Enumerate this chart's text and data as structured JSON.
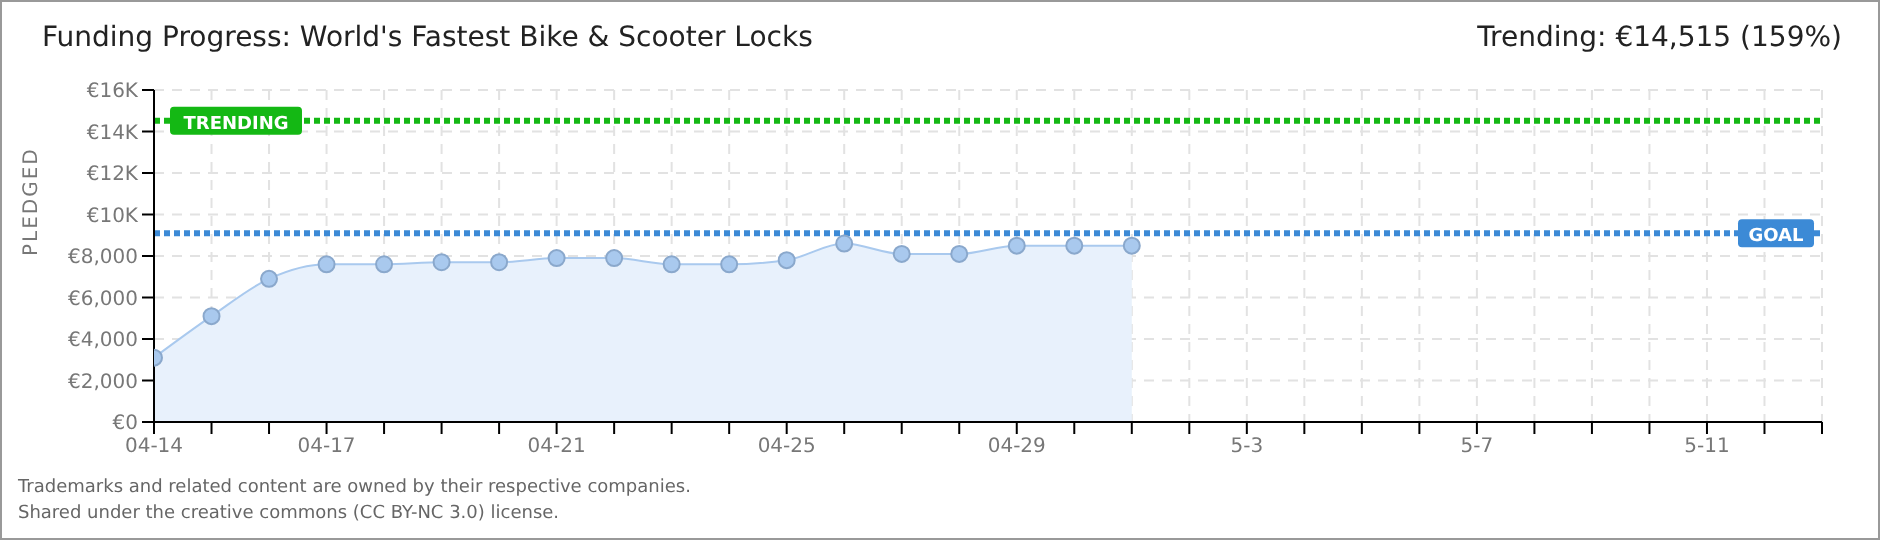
{
  "chart_data": {
    "type": "area",
    "title": "Funding Progress: World's Fastest Bike & Scooter Locks",
    "subtitle": "Trending: €14,515 (159%)",
    "ylabel": "PLEDGED",
    "categories": [
      "04-14",
      null,
      null,
      "04-17",
      null,
      null,
      null,
      "04-21",
      null,
      null,
      null,
      "04-25",
      null,
      null,
      null,
      "04-29",
      null,
      null,
      null,
      "5-3",
      null,
      null,
      null,
      "5-7",
      null,
      null,
      null,
      "5-11",
      null,
      null
    ],
    "series": [
      {
        "color": "#a9c9ee",
        "values": [
          3100,
          5100,
          6900,
          7600,
          7600,
          7700,
          7700,
          7900,
          7900,
          7600,
          7600,
          7800,
          8600,
          8100,
          8100,
          8500,
          8500,
          8500,
          null,
          null,
          null,
          null,
          null,
          null,
          null,
          null,
          null,
          null,
          null,
          null
        ]
      }
    ],
    "ylim": [
      0,
      16000
    ],
    "yticks": [
      {
        "value": 0,
        "label": "€0"
      },
      {
        "value": 2000,
        "label": "€2,000"
      },
      {
        "value": 4000,
        "label": "€4,000"
      },
      {
        "value": 6000,
        "label": "€6,000"
      },
      {
        "value": 8000,
        "label": "€8,000"
      },
      {
        "value": 10000,
        "label": "€10K"
      },
      {
        "value": 12000,
        "label": "€12K"
      },
      {
        "value": 14000,
        "label": "€14K"
      },
      {
        "value": 16000,
        "label": "€16K"
      }
    ],
    "ref_lines": [
      {
        "axis": "y",
        "value": 14515,
        "label": "TRENDING",
        "color": "#14b814",
        "line_style": "dotted"
      },
      {
        "axis": "y",
        "value": 9100,
        "label": "GOAL",
        "color": "#3c8ad6",
        "line_style": "dotted"
      }
    ],
    "annotations": [
      "Trademarks and related content are owned by their respective companies.",
      "Shared under the creative commons (CC BY-NC 3.0) license."
    ],
    "grid": true,
    "marker": "circle"
  }
}
